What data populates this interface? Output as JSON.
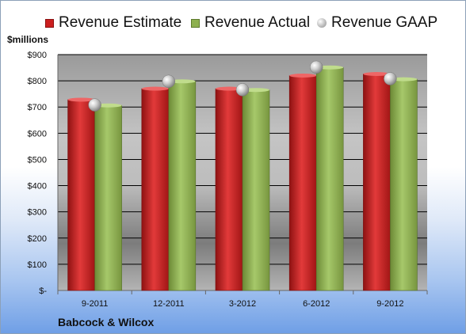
{
  "legend": {
    "estimate_label": "Revenue Estimate",
    "actual_label": "Revenue Actual",
    "gaap_label": "Revenue GAAP"
  },
  "units_label": "$millions",
  "company_name": "Babcock & Wilcox",
  "colors": {
    "estimate": "#cc1f1f",
    "actual": "#8db04f",
    "gaap": "#b8b8b8"
  },
  "chart_data": {
    "type": "bar",
    "categories": [
      "9-2011",
      "12-2011",
      "3-2012",
      "6-2012",
      "9-2012"
    ],
    "series": [
      {
        "name": "Revenue Estimate",
        "values": [
          728,
          770,
          770,
          820,
          826
        ]
      },
      {
        "name": "Revenue Actual",
        "values": [
          706,
          798,
          765,
          851,
          806
        ]
      },
      {
        "name": "Revenue GAAP",
        "values": [
          708,
          798,
          766,
          852,
          808
        ]
      }
    ],
    "ylim": [
      0,
      900
    ],
    "yticks": [
      0,
      100,
      200,
      300,
      400,
      500,
      600,
      700,
      800,
      900
    ],
    "ytick_labels": [
      "$-",
      "$100",
      "$200",
      "$300",
      "$400",
      "$500",
      "$600",
      "$700",
      "$800",
      "$900"
    ],
    "ylabel": "$millions",
    "grid": true,
    "legend_position": "top"
  }
}
